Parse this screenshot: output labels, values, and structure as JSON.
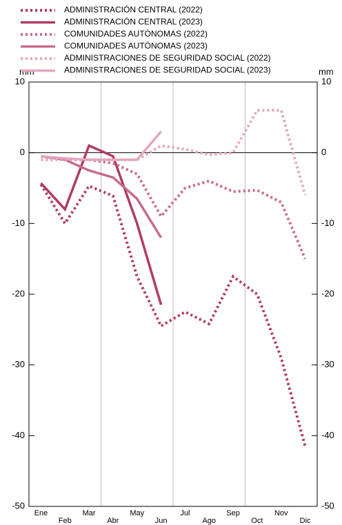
{
  "chart_data": {
    "type": "line",
    "y_unit": "mm",
    "y2_unit": "mm",
    "categories": [
      "Ene",
      "Feb",
      "Mar",
      "Abr",
      "May",
      "Jun",
      "Jul",
      "Ago",
      "Sep",
      "Oct",
      "Nov",
      "Dic"
    ],
    "series": [
      {
        "name": "ADMINISTRACIÓN CENTRAL (2022)",
        "color": "#b03a64",
        "dashed": true,
        "values": [
          -4.5,
          -10,
          -4.7,
          -6.1,
          -17.5,
          -24.5,
          -22.5,
          -24.2,
          -17.5,
          -20,
          -29,
          -41.5
        ]
      },
      {
        "name": "ADMINISTRACIÓN CENTRAL (2023)",
        "color": "#b03a64",
        "dashed": false,
        "values": [
          -4.3,
          -8,
          1,
          -0.5,
          -10,
          -21.5,
          null,
          null,
          null,
          null,
          null,
          null
        ]
      },
      {
        "name": "COMUNIDADES AUTÓNOMAS (2022)",
        "color": "#c96a8e",
        "dashed": true,
        "values": [
          -0.5,
          -1,
          -1,
          -1.5,
          -3,
          -9,
          -5,
          -4,
          -5.5,
          -5.3,
          -7,
          -15
        ]
      },
      {
        "name": "COMUNIDADES AUTÓNOMAS (2023)",
        "color": "#c96a8e",
        "dashed": false,
        "values": [
          -0.5,
          -1,
          -2.5,
          -3.5,
          -6.5,
          -12,
          null,
          null,
          null,
          null,
          null,
          null
        ]
      },
      {
        "name": "ADMINISTRACIONES DE SEGURIDAD SOCIAL (2022)",
        "color": "#e4a6bf",
        "dashed": true,
        "values": [
          -1,
          -1,
          -1,
          -1,
          -1,
          1,
          0.5,
          -0.3,
          0,
          6,
          6,
          -6
        ]
      },
      {
        "name": "ADMINISTRACIONES DE SEGURIDAD SOCIAL (2023)",
        "color": "#e4a6bf",
        "dashed": false,
        "values": [
          -0.5,
          -0.8,
          -1,
          -1,
          -1,
          3,
          null,
          null,
          null,
          null,
          null,
          null
        ]
      }
    ],
    "ylim": [
      -50,
      10
    ],
    "yticks": [
      -50,
      -40,
      -30,
      -20,
      -10,
      0,
      10
    ],
    "y2lim": [
      -50,
      10
    ],
    "y2ticks": [
      -50,
      -40,
      -30,
      -20,
      -10,
      0,
      10
    ],
    "grid": true
  }
}
